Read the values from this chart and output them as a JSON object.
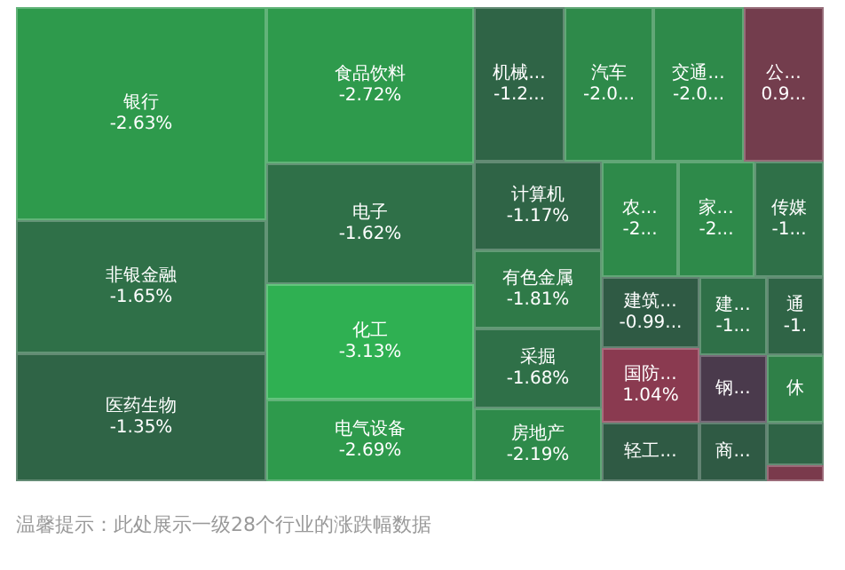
{
  "chart_data": {
    "type": "other",
    "categories": [
      "银行",
      "非银金融",
      "医药生物",
      "食品饮料",
      "电子",
      "化工",
      "电气设备",
      "机械...",
      "汽车",
      "交通...",
      "公...",
      "计算机",
      "农...",
      "家...",
      "传媒",
      "有色金属",
      "采掘",
      "房地产",
      "建筑...",
      "建...",
      "通",
      "国防...",
      "钢...",
      "休",
      "轻工...",
      "商...",
      null,
      null
    ],
    "values": [
      -2.63,
      -1.65,
      -1.35,
      -2.72,
      -1.62,
      -3.13,
      -2.69,
      null,
      null,
      null,
      null,
      -1.17,
      null,
      null,
      null,
      -1.81,
      -1.68,
      -2.19,
      null,
      null,
      null,
      1.04,
      null,
      null,
      null,
      null,
      null,
      null
    ],
    "value_labels": [
      "-2.63%",
      "-1.65%",
      "-1.35%",
      "-2.72%",
      "-1.62%",
      "-3.13%",
      "-2.69%",
      "-1.2...",
      "-2.0...",
      "-2.0...",
      "0.9...",
      "-1.17%",
      "-2...",
      "-2...",
      "-1...",
      "-1.81%",
      "-1.68%",
      "-2.19%",
      "-0.99...",
      "-1...",
      "-1.",
      "1.04%",
      null,
      null,
      null,
      null,
      null,
      null
    ],
    "colors": [
      "#2e9a4c",
      "#2f7048",
      "#2f6446",
      "#2e9a4c",
      "#2f7048",
      "#2fb052",
      "#2e9a4c",
      "#2f6446",
      "#2e8a4a",
      "#2e8a4a",
      "#733d4d",
      "#2f6446",
      "#2e8a4a",
      "#2e8a4a",
      "#2f7048",
      "#2f7a48",
      "#2f7048",
      "#2e8a4a",
      "#2f5a44",
      "#2f7048",
      "#2f6446",
      "#8a3a50",
      "#4a3a4c",
      "#2f8048",
      "#2f5a44",
      "#2f5a44",
      "#2f6446",
      "#7a3a4c"
    ],
    "annotations": [
      "温馨提示：此处展示一级28个行业的涨跌幅数据"
    ]
  }
}
